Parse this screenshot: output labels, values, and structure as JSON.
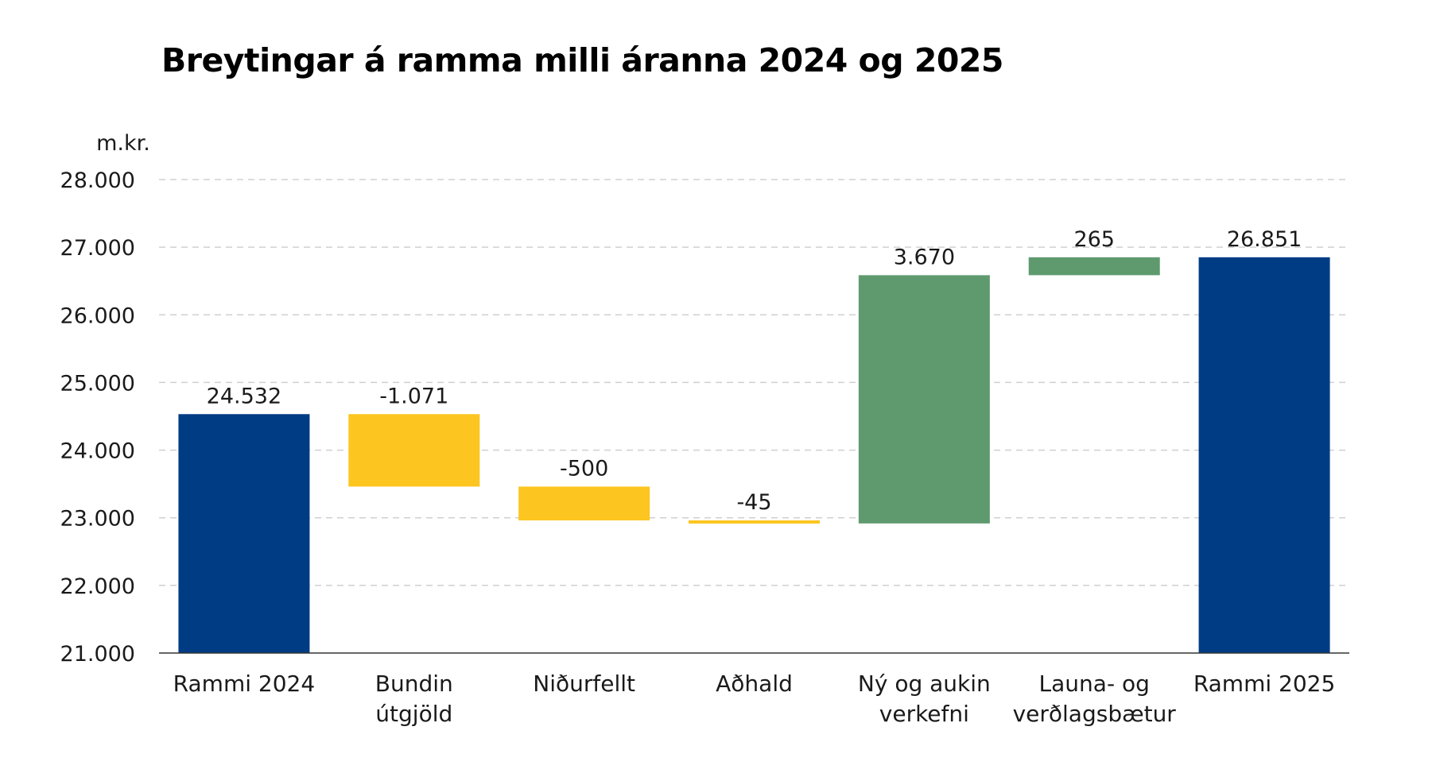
{
  "chart_data": {
    "type": "bar",
    "subtype": "waterfall",
    "title": "Breytingar á ramma milli áranna 2024 og 2025",
    "unit_label": "m.kr.",
    "ylim": [
      21000,
      28000
    ],
    "yticks": [
      21000,
      22000,
      23000,
      24000,
      25000,
      26000,
      27000,
      28000
    ],
    "ytick_labels": [
      "21.000",
      "22.000",
      "23.000",
      "24.000",
      "25.000",
      "26.000",
      "27.000",
      "28.000"
    ],
    "grid": true,
    "categories": [
      [
        "Rammi 2024"
      ],
      [
        "Bundin",
        "útgjöld"
      ],
      [
        "Niðurfellt"
      ],
      [
        "Aðhald"
      ],
      [
        "Ný og aukin",
        "verkefni"
      ],
      [
        "Launa- og",
        "verðlagsbætur"
      ],
      [
        "Rammi 2025"
      ]
    ],
    "steps": [
      {
        "kind": "total",
        "value": 24532,
        "label": "24.532",
        "color": "#003c84"
      },
      {
        "kind": "change",
        "value": -1071,
        "label": "-1.071",
        "color": "#fcc520"
      },
      {
        "kind": "change",
        "value": -500,
        "label": "-500",
        "color": "#fcc520"
      },
      {
        "kind": "change",
        "value": -45,
        "label": "-45",
        "color": "#fcc520"
      },
      {
        "kind": "change",
        "value": 3670,
        "label": "3.670",
        "color": "#5f9a6f"
      },
      {
        "kind": "change",
        "value": 265,
        "label": "265",
        "color": "#5f9a6f"
      },
      {
        "kind": "total",
        "value": 26851,
        "label": "26.851",
        "color": "#003c84"
      }
    ]
  }
}
